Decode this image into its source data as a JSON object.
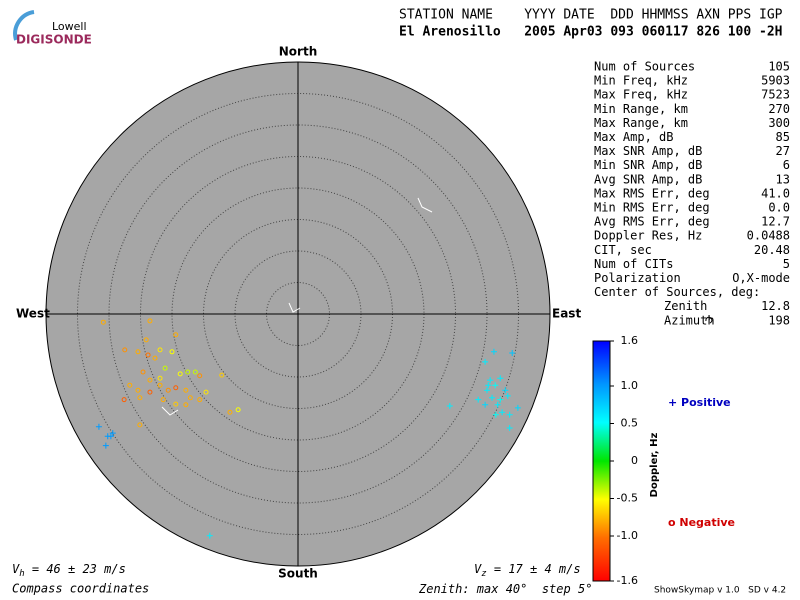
{
  "logo": {
    "top": "Lowell",
    "bottom": "DIGISONDE"
  },
  "header": {
    "line1": "STATION NAME    YYYY DATE  DDD HHMMSS AXN PPS IGP",
    "line2": "El Arenosillo   2005 Apr03 093 060117 826 100 -2H"
  },
  "compass": {
    "north": "North",
    "south": "South",
    "east": "East",
    "west": "West"
  },
  "stats": {
    "rows": [
      [
        "Num of Sources",
        "105"
      ],
      [
        "Min Freq, kHz",
        "5903"
      ],
      [
        "Max Freq, kHz",
        "7523"
      ],
      [
        "Min Range, km",
        "270"
      ],
      [
        "Max Range, km",
        "300"
      ],
      [
        "Max Amp, dB",
        "85"
      ],
      [
        "Max SNR Amp, dB",
        "27"
      ],
      [
        "Min SNR Amp, dB",
        "6"
      ],
      [
        "Avg SNR Amp, dB",
        "13"
      ],
      [
        "Max RMS Err, deg",
        "41.0"
      ],
      [
        "Min RMS Err, deg",
        "0.0"
      ],
      [
        "Avg RMS Err, deg",
        "12.7"
      ],
      [
        "Doppler Res, Hz",
        "0.0488"
      ],
      [
        "CIT, sec",
        "20.48"
      ],
      [
        "Num of CITs",
        "5"
      ],
      [
        "Polarization",
        "O,X-mode"
      ]
    ],
    "center_heading": "Center of Sources, deg:",
    "center_rows": [
      [
        "Zenith",
        "12.8"
      ],
      [
        "Azimuth",
        "198"
      ]
    ]
  },
  "colorbar": {
    "label": "Doppler, Hz",
    "lim": [
      -1.6,
      1.6
    ],
    "ticks": [
      1.6,
      {
        "value": 1.0,
        "label": "1.0"
      },
      0.5,
      0,
      -0.5,
      {
        "value": -1.0,
        "label": "-1.0"
      },
      -1.6
    ]
  },
  "legend": {
    "positive": "+ Positive",
    "negative": "o Negative"
  },
  "velocity": {
    "vh_v": "V",
    "vh_sub": "h",
    "vh_rest": " = 46 ± 23 m/s",
    "vz_v": "V",
    "vz_sub": "z",
    "vz_rest": " = 17 ± 4 m/s"
  },
  "footer": {
    "coords": "Compass coordinates",
    "zenith_prefix": "Zenith: max ",
    "zenith_max": 40,
    "zenith_mid": "°  step ",
    "zenith_step": 5,
    "zenith_suffix": "°",
    "version": "ShowSkymap v 1.0   SD v 4.2"
  },
  "sources": {
    "east": [
      -30.9,
      -23.5,
      -27.5,
      -25.4,
      -23.8,
      -21.9,
      -22.7,
      -20.0,
      -24.1,
      -24.6,
      -23.5,
      -21.9,
      -21.1,
      -18.7,
      -17.5,
      -16.3,
      -15.6,
      -12.1,
      -26.7,
      -25.4,
      -23.5,
      -21.9,
      -20.6,
      -19.4,
      -17.8,
      -17.1,
      -15.6,
      -14.6,
      -27.6,
      -25.1,
      -21.4,
      -19.4,
      -17.8,
      -10.8,
      -9.5,
      -25.1,
      -19.4,
      -31.6,
      -30.2,
      -29.7,
      -29.4,
      -30.5,
      29.7,
      31.1,
      34.0,
      30.5,
      31.3,
      32.1,
      32.9,
      30.0,
      30.8,
      32.1,
      33.3,
      31.7,
      29.7,
      28.6,
      32.4,
      31.4,
      33.6,
      24.1,
      33.6,
      34.9,
      30.2,
      -14.0
    ],
    "north": [
      -1.3,
      -1.1,
      -5.7,
      -6.0,
      -6.5,
      -5.7,
      -7.0,
      -6.0,
      -4.1,
      -9.2,
      -10.5,
      -10.2,
      -8.6,
      -9.5,
      -9.2,
      -9.2,
      -9.8,
      -9.7,
      -11.3,
      -12.1,
      -12.4,
      -11.3,
      -12.1,
      -11.7,
      -12.1,
      -13.3,
      -13.6,
      -12.4,
      -13.6,
      -13.3,
      -13.6,
      -14.3,
      -14.4,
      -15.6,
      -15.2,
      -17.6,
      -3.3,
      -17.9,
      -19.4,
      -19.4,
      -18.9,
      -20.9,
      -7.6,
      -6.0,
      -6.2,
      -10.5,
      -11.3,
      -10.2,
      -12.1,
      -12.1,
      -13.3,
      -13.6,
      -13.0,
      -14.4,
      -14.4,
      -13.6,
      -15.6,
      -16.0,
      -16.0,
      -14.6,
      -18.1,
      -14.9,
      -11.3,
      -35.2
    ],
    "doppler": [
      -0.8,
      -0.8,
      -0.9,
      -0.8,
      -1.0,
      -0.6,
      -0.8,
      -0.5,
      -0.8,
      -0.9,
      -0.8,
      -0.6,
      -0.4,
      -0.5,
      -0.4,
      -0.4,
      -0.9,
      -0.7,
      -0.8,
      -0.8,
      -1.1,
      -0.8,
      -0.9,
      -1.1,
      -0.8,
      -0.8,
      -0.8,
      -0.6,
      -1.1,
      -0.8,
      -0.8,
      -0.7,
      -0.8,
      -0.8,
      -0.5,
      -0.8,
      -0.8,
      1.0,
      1.0,
      1.0,
      1.0,
      1.0,
      0.6,
      0.7,
      0.8,
      0.6,
      0.5,
      0.6,
      0.7,
      0.6,
      0.6,
      0.5,
      0.6,
      0.6,
      0.7,
      0.6,
      0.6,
      0.5,
      0.6,
      0.6,
      0.6,
      0.7,
      0.6,
      0.6
    ]
  }
}
